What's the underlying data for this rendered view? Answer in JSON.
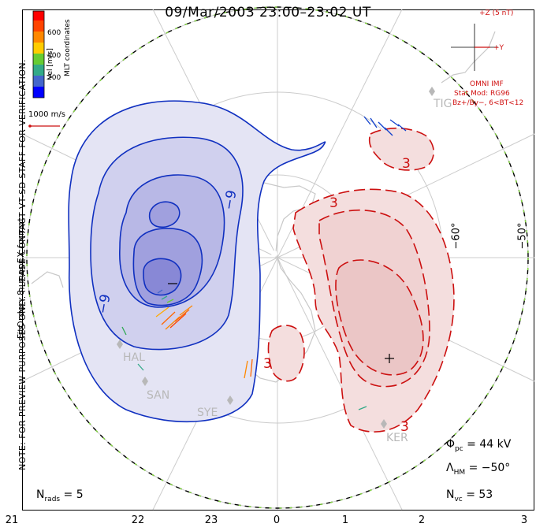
{
  "title": "09/Mar/2003 23:00–23:02 UT",
  "colorbar": {
    "label": "Vel [m/s]",
    "coords_label": "MLT coordinates",
    "ticks": [
      "600",
      "400",
      "200"
    ],
    "colors": [
      "#0000ff",
      "#4466cc",
      "#33aa88",
      "#66cc33",
      "#ffcc00",
      "#ff8800",
      "#ff4400",
      "#ff0000"
    ]
  },
  "scale_vector": "1000 m/s",
  "note": "NOTE: FOR PREVIEW PURPOSES ONLY. PLEASE CONTACT VT-SD STAFF FOR VERIFICATION.",
  "fit_order": "FitOrder: 8, mapEX format",
  "imf": {
    "axis_z": "+Z (5 nT)",
    "axis_y": "+Y",
    "source": "OMNI IMF",
    "model": "Stat Mod: RG96",
    "condition": "Bz+/By−, 6<BT<12"
  },
  "stats": {
    "phi_pc_label": "Φ",
    "phi_pc_sub": "pc",
    "phi_pc_value": " = 44 kV",
    "lambda_label": "Λ",
    "lambda_sub": "HM",
    "lambda_value": " = −50°",
    "nrads_label": "N",
    "nrads_sub": "rads",
    "nrads_value": " = 5",
    "nvc_label": "N",
    "nvc_sub": "vc",
    "nvc_value": " = 53"
  },
  "mlt_ticks": [
    "21",
    "22",
    "23",
    "0",
    "1",
    "2",
    "3"
  ],
  "lat_labels": [
    "−60°",
    "−50°"
  ],
  "contour_labels": {
    "neg_a": "−9",
    "neg_b": "−9",
    "pos_a": "3",
    "pos_b": "3",
    "pos_c": "3",
    "pos_d": "3",
    "min_mark": "−",
    "max_mark": "+"
  },
  "stations": [
    "HAL",
    "SAN",
    "SYE",
    "KER",
    "TIG"
  ]
}
